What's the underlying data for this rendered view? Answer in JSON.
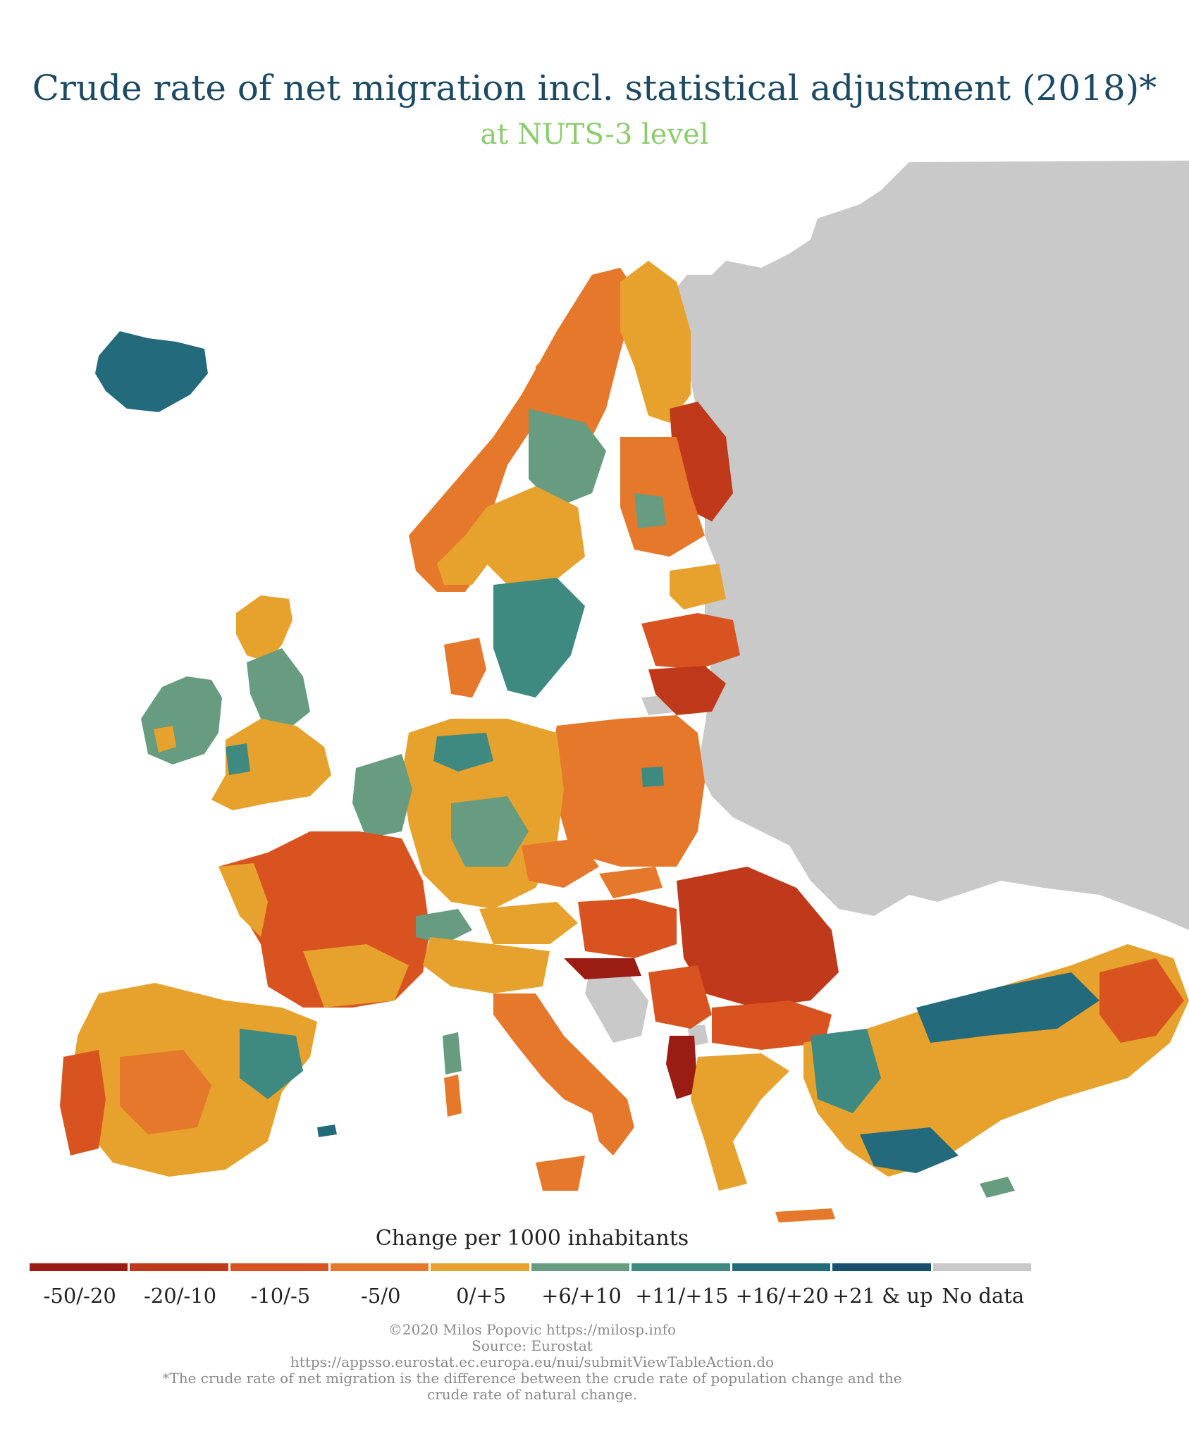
{
  "header": {
    "title": "Crude rate of net migration incl. statistical adjustment (2018)*",
    "subtitle": "at NUTS-3 level"
  },
  "legend": {
    "title": "Change per 1000 inhabitants",
    "classes": [
      {
        "label": "-50/-20",
        "color": "#9b1c12"
      },
      {
        "label": "-20/-10",
        "color": "#c0391a"
      },
      {
        "label": "-10/-5",
        "color": "#d8531f"
      },
      {
        "label": "-5/0",
        "color": "#e5782a"
      },
      {
        "label": "0/+5",
        "color": "#e6a22c"
      },
      {
        "label": "+6/+10",
        "color": "#679c80"
      },
      {
        "label": "+11/+15",
        "color": "#3f8a80"
      },
      {
        "label": "+16/+20",
        "color": "#236b7c"
      },
      {
        "label": "+21 & up",
        "color": "#174f6c"
      },
      {
        "label": "No data",
        "color": "#c9c9c9"
      }
    ]
  },
  "credits": {
    "author": "©2020 Milos Popovic https://milosp.info",
    "source": "Source: Eurostat",
    "url": "https://appsso.eurostat.ec.europa.eu/nui/submitViewTableAction.do",
    "note": "*The crude rate of net migration is the difference between the crude rate of population change and the crude rate of natural change."
  }
}
